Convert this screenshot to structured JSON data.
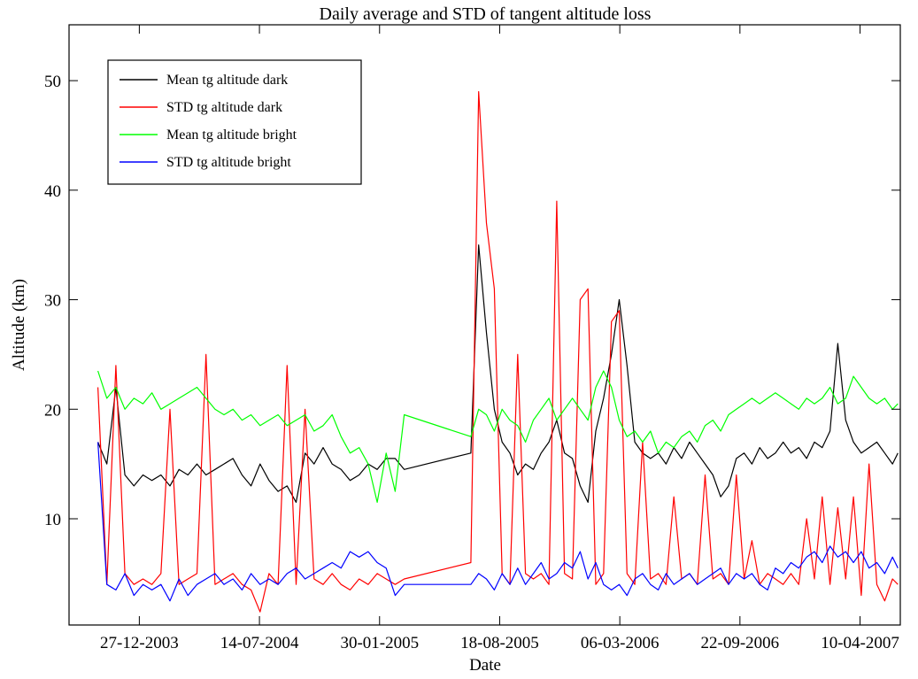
{
  "chart_data": {
    "type": "line",
    "title": "Daily average and STD of tangent altitude loss",
    "xlabel": "Date",
    "ylabel": "Altitude (km)",
    "x": [
      "19-10-2003",
      "03-11-2003",
      "18-11-2003",
      "03-12-2003",
      "18-12-2003",
      "02-01-2004",
      "17-01-2004",
      "01-02-2004",
      "16-02-2004",
      "02-03-2004",
      "17-03-2004",
      "01-04-2004",
      "16-04-2004",
      "01-05-2004",
      "16-05-2004",
      "31-05-2004",
      "15-06-2004",
      "30-06-2004",
      "15-07-2004",
      "30-07-2004",
      "14-08-2004",
      "29-08-2004",
      "13-09-2004",
      "28-09-2004",
      "13-10-2004",
      "28-10-2004",
      "12-11-2004",
      "27-11-2004",
      "12-12-2004",
      "27-12-2004",
      "11-01-2005",
      "26-01-2005",
      "10-02-2005",
      "25-02-2005",
      "12-03-2005",
      "01-07-2005",
      "14-07-2005",
      "27-07-2005",
      "09-08-2005",
      "22-08-2005",
      "04-09-2005",
      "17-09-2005",
      "30-09-2005",
      "13-10-2005",
      "26-10-2005",
      "08-11-2005",
      "21-11-2005",
      "04-12-2005",
      "17-12-2005",
      "30-12-2005",
      "12-01-2006",
      "25-01-2006",
      "07-02-2006",
      "20-02-2006",
      "05-03-2006",
      "18-03-2006",
      "31-03-2006",
      "13-04-2006",
      "26-04-2006",
      "09-05-2006",
      "22-05-2006",
      "04-06-2006",
      "17-06-2006",
      "30-06-2006",
      "13-07-2006",
      "26-07-2006",
      "08-08-2006",
      "21-08-2006",
      "03-09-2006",
      "16-09-2006",
      "29-09-2006",
      "12-10-2006",
      "25-10-2006",
      "07-11-2006",
      "20-11-2006",
      "03-12-2006",
      "16-12-2006",
      "29-12-2006",
      "11-01-2007",
      "24-01-2007",
      "06-02-2007",
      "19-02-2007",
      "04-03-2007",
      "17-03-2007",
      "30-03-2007",
      "12-04-2007",
      "25-04-2007",
      "08-05-2007",
      "21-05-2007",
      "03-06-2007",
      "12-06-2007"
    ],
    "series": [
      {
        "name": "Mean tg altitude dark",
        "color": "#000000",
        "values": [
          17,
          15,
          22,
          14,
          13,
          14,
          13.5,
          14,
          13,
          14.5,
          14,
          15,
          14,
          14.5,
          15,
          15.5,
          14,
          13,
          15,
          13.5,
          12.5,
          13,
          11.5,
          16,
          15,
          16.5,
          15,
          14.5,
          13.5,
          14,
          15,
          14.5,
          15.5,
          15.5,
          14.5,
          16,
          35,
          27,
          20,
          17,
          16,
          14,
          15,
          14.5,
          16,
          17,
          19,
          16,
          15.5,
          13,
          11.5,
          18,
          21,
          25,
          30,
          24,
          17,
          16,
          15.5,
          16,
          15,
          16.5,
          15.5,
          17,
          16,
          15,
          14,
          12,
          13,
          15.5,
          16,
          15,
          16.5,
          15.5,
          16,
          17,
          16,
          16.5,
          15.5,
          17,
          16.5,
          18,
          26,
          19,
          17,
          16,
          16.5,
          17,
          16,
          15,
          16
        ]
      },
      {
        "name": "STD tg altitude dark",
        "color": "#ff0000",
        "values": [
          22,
          4,
          24,
          5,
          4,
          4.5,
          4,
          5,
          20,
          4,
          4.5,
          5,
          25,
          4,
          4.5,
          5,
          4,
          3.5,
          1.5,
          5,
          4,
          24,
          4,
          20,
          4.5,
          4,
          5,
          4,
          3.5,
          4.5,
          4,
          5,
          4.5,
          4,
          4.5,
          6,
          49,
          37,
          31,
          5,
          4,
          25,
          5,
          4.5,
          5,
          4,
          39,
          5,
          4.5,
          30,
          31,
          4,
          5,
          28,
          29,
          5,
          4,
          17,
          4.5,
          5,
          4,
          12,
          4.5,
          5,
          4,
          14,
          4.5,
          5,
          4,
          14,
          4.5,
          8,
          4,
          5,
          4.5,
          4,
          5,
          4,
          10,
          4.5,
          12,
          4,
          11,
          4.5,
          12,
          3,
          15,
          4,
          2.5,
          4.5,
          4
        ]
      },
      {
        "name": "Mean tg altitude bright",
        "color": "#00ff00",
        "values": [
          23.5,
          21,
          22,
          20,
          21,
          20.5,
          21.5,
          20,
          20.5,
          21,
          21.5,
          22,
          21,
          20,
          19.5,
          20,
          19,
          19.5,
          18.5,
          19,
          19.5,
          18.5,
          19,
          19.5,
          18,
          18.5,
          19.5,
          17.5,
          16,
          16.5,
          15,
          11.5,
          16,
          12.5,
          19.5,
          17.5,
          20,
          19.5,
          18,
          20,
          19,
          18.5,
          17,
          19,
          20,
          21,
          19,
          20,
          21,
          20,
          19,
          22,
          23.5,
          22,
          19,
          17.5,
          18,
          17,
          18,
          16,
          17,
          16.5,
          17.5,
          18,
          17,
          18.5,
          19,
          18,
          19.5,
          20,
          20.5,
          21,
          20.5,
          21,
          21.5,
          21,
          20.5,
          20,
          21,
          20.5,
          21,
          22,
          20.5,
          21,
          23,
          22,
          21,
          20.5,
          21,
          20,
          20.5
        ]
      },
      {
        "name": "STD tg altitude bright",
        "color": "#0000ff",
        "values": [
          17,
          4,
          3.5,
          5,
          3,
          4,
          3.5,
          4,
          2.5,
          4.5,
          3,
          4,
          4.5,
          5,
          4,
          4.5,
          3.5,
          5,
          4,
          4.5,
          4,
          5,
          5.5,
          4.5,
          5,
          5.5,
          6,
          5.5,
          7,
          6.5,
          7,
          6,
          5.5,
          3,
          4,
          4,
          5,
          4.5,
          3.5,
          5,
          4,
          5.5,
          4,
          5,
          6,
          4.5,
          5,
          6,
          5.5,
          7,
          4.5,
          6,
          4,
          3.5,
          4,
          3,
          4.5,
          5,
          4,
          3.5,
          5,
          4,
          4.5,
          5,
          4,
          4.5,
          5,
          5.5,
          4,
          5,
          4.5,
          5,
          4,
          3.5,
          5.5,
          5,
          6,
          5.5,
          6.5,
          7,
          6,
          7.5,
          6.5,
          7,
          6,
          7,
          5.5,
          6,
          5,
          6.5,
          5.5
        ]
      }
    ],
    "xlim": [
      "01-09-2003",
      "16-06-2007"
    ],
    "xticks": [
      "27-12-2003",
      "14-07-2004",
      "30-01-2005",
      "18-08-2005",
      "06-03-2006",
      "22-09-2006",
      "10-04-2007"
    ],
    "ylim": [
      0.3,
      55.1
    ],
    "yticks": [
      10,
      20,
      30,
      40,
      50
    ],
    "grid": false,
    "legend": "upper left"
  }
}
